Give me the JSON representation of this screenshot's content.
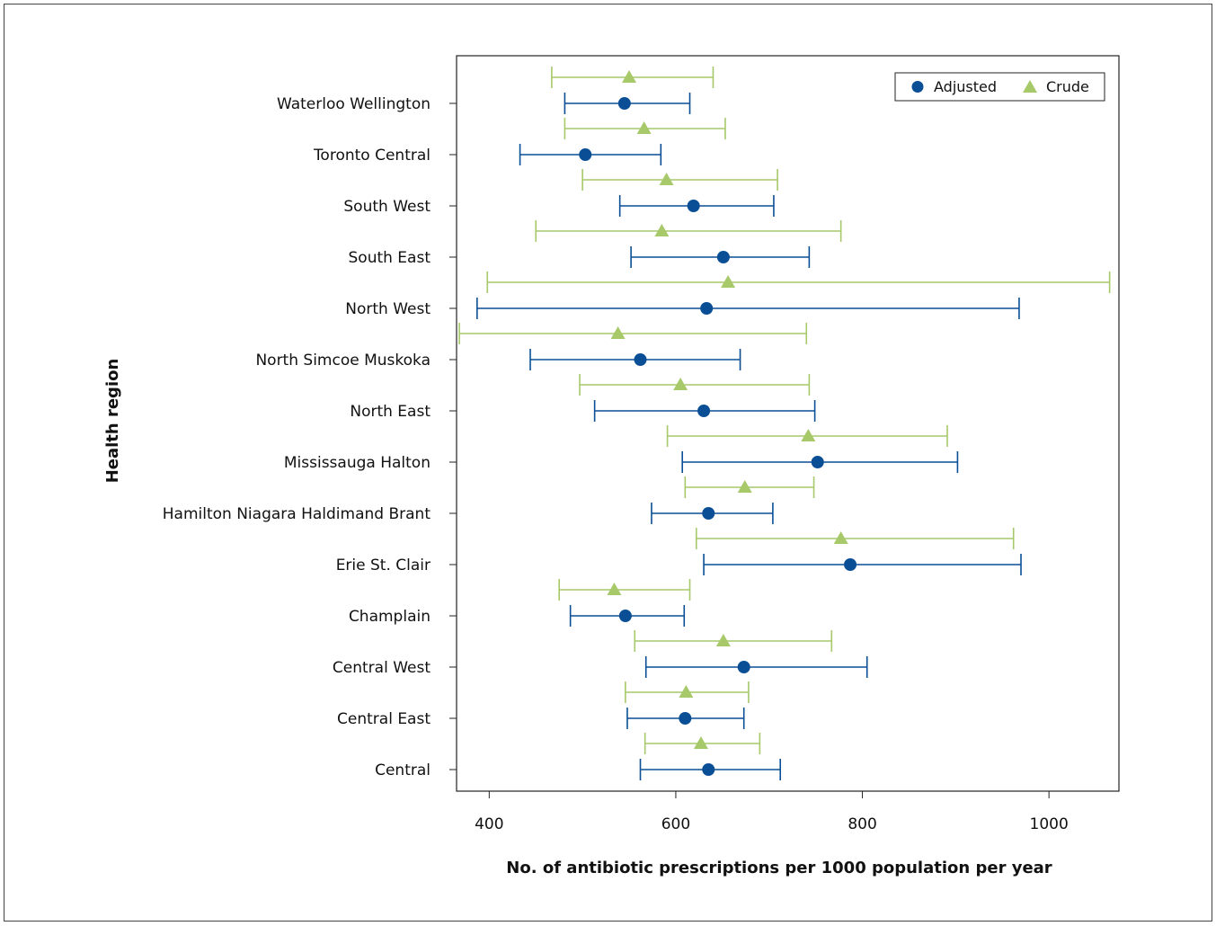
{
  "chart_data": {
    "type": "scatter",
    "xlabel": "No. of antibiotic prescriptions per 1000 population per year",
    "ylabel": "Health region",
    "xlim": [
      365,
      1075
    ],
    "xticks": [
      400,
      600,
      800,
      1000
    ],
    "legend": {
      "placement": "top-right",
      "entries": [
        "Adjusted",
        "Crude"
      ]
    },
    "colors": {
      "adjusted": "#0a4f96",
      "crude": "#a7c96a"
    },
    "categories": [
      "Waterloo Wellington",
      "Toronto Central",
      "South West",
      "South East",
      "North West",
      "North Simcoe Muskoka",
      "North East",
      "Mississauga Halton",
      "Hamilton Niagara Haldimand Brant",
      "Erie St. Clair",
      "Champlain",
      "Central West",
      "Central East",
      "Central"
    ],
    "series": [
      {
        "name": "Adjusted",
        "marker": "circle",
        "values": [
          545,
          503,
          619,
          651,
          633,
          562,
          630,
          752,
          635,
          787,
          546,
          673,
          610,
          635
        ],
        "lower": [
          481,
          433,
          540,
          552,
          387,
          444,
          513,
          607,
          574,
          630,
          487,
          568,
          548,
          562
        ],
        "upper": [
          615,
          584,
          705,
          743,
          968,
          669,
          749,
          902,
          704,
          970,
          609,
          805,
          673,
          712
        ]
      },
      {
        "name": "Crude",
        "marker": "triangle",
        "values": [
          550,
          566,
          590,
          585,
          656,
          538,
          605,
          742,
          674,
          777,
          534,
          651,
          611,
          627
        ],
        "lower": [
          467,
          481,
          500,
          450,
          398,
          368,
          497,
          591,
          610,
          622,
          475,
          556,
          546,
          567
        ],
        "upper": [
          640,
          653,
          709,
          777,
          1065,
          740,
          743,
          891,
          748,
          962,
          615,
          767,
          678,
          690
        ]
      }
    ]
  }
}
